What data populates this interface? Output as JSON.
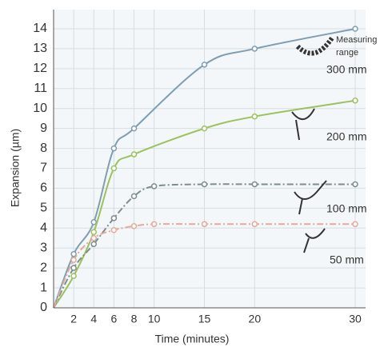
{
  "chart_data": {
    "type": "line",
    "xlabel": "Time (minutes)",
    "ylabel": "Expansion (µm)",
    "annotation": [
      "Measuring",
      "range"
    ],
    "xlim": [
      0,
      30
    ],
    "xticks": [
      2,
      4,
      6,
      8,
      10,
      15,
      20,
      30
    ],
    "ylim": [
      0,
      14
    ],
    "yticks": [
      0,
      1,
      2,
      3,
      4,
      5,
      6,
      7,
      8,
      9,
      10,
      11,
      12,
      13,
      14
    ],
    "grid": true,
    "series": [
      {
        "name": "300 mm",
        "color": "#7f9db3",
        "dashed": false,
        "x": [
          0,
          2,
          4,
          6,
          8,
          15,
          20,
          30
        ],
        "values": [
          0,
          2.7,
          4.3,
          8.0,
          9.0,
          12.2,
          13.0,
          14.0
        ]
      },
      {
        "name": "200 mm",
        "color": "#9bc25c",
        "dashed": false,
        "x": [
          0,
          2,
          4,
          6,
          8,
          15,
          20,
          30
        ],
        "values": [
          0,
          1.6,
          3.8,
          7.0,
          7.7,
          9.0,
          9.6,
          10.4
        ]
      },
      {
        "name": "100 mm",
        "color": "#7e8d8d",
        "dashed": true,
        "x": [
          0,
          2,
          4,
          6,
          8,
          10,
          15,
          20,
          30
        ],
        "values": [
          0,
          2.0,
          3.2,
          4.5,
          5.6,
          6.1,
          6.2,
          6.2,
          6.2
        ]
      },
      {
        "name": "50 mm",
        "color": "#e3aa9a",
        "dashed": true,
        "x": [
          0,
          2,
          4,
          6,
          8,
          10,
          15,
          20,
          30
        ],
        "values": [
          0,
          2.4,
          3.5,
          3.9,
          4.1,
          4.2,
          4.2,
          4.2,
          4.2
        ]
      }
    ]
  }
}
